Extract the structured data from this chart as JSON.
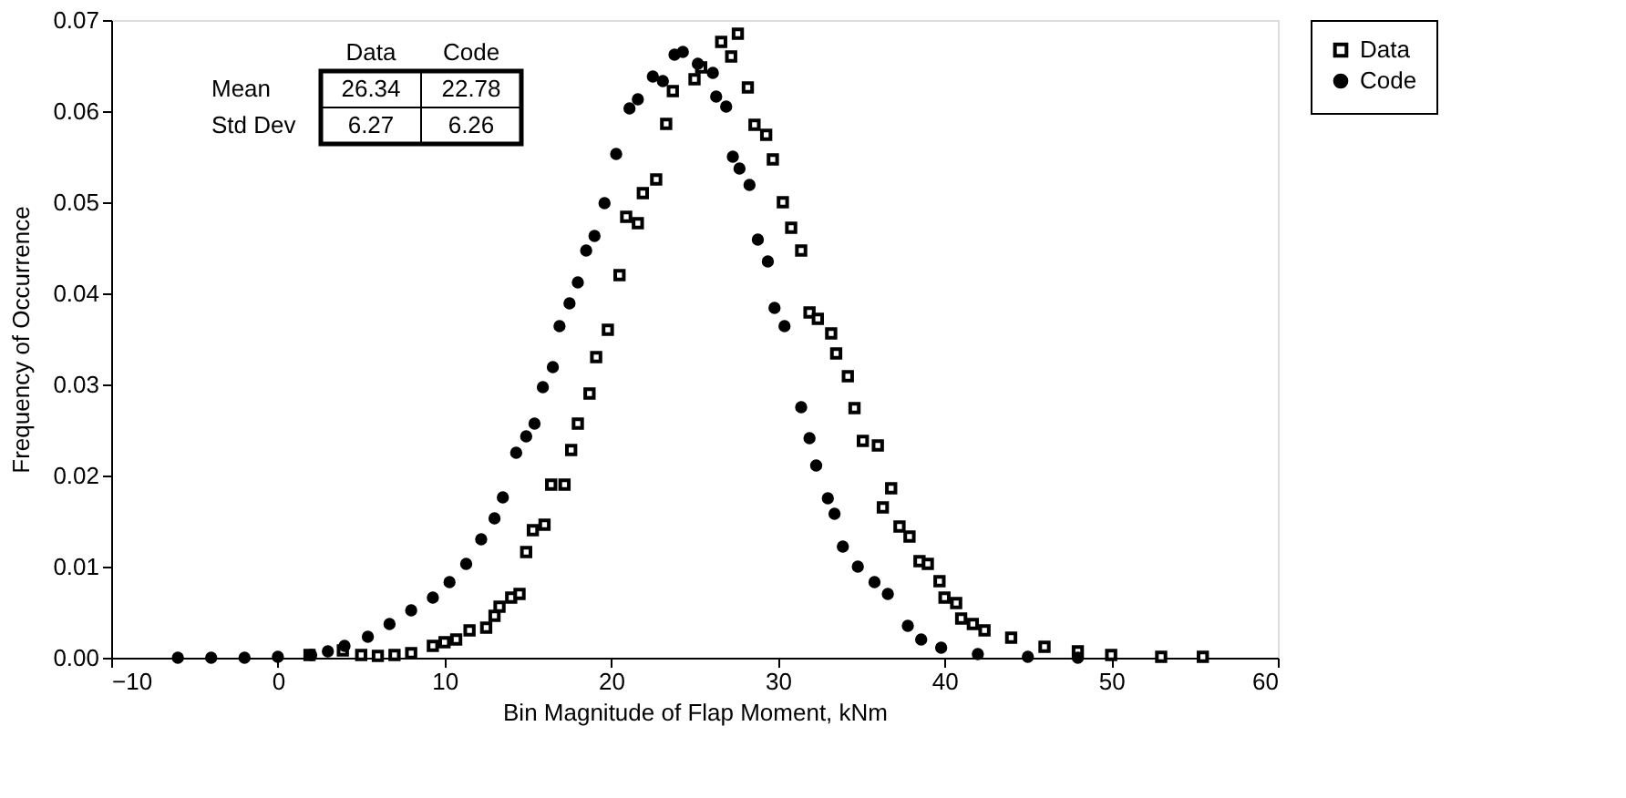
{
  "chart_data": {
    "type": "scatter",
    "xlabel": "Bin Magnitude of Flap Moment, kNm",
    "ylabel": "Frequency of Occurrence",
    "xlim": [
      -10,
      60
    ],
    "xticks": [
      -10,
      0,
      10,
      20,
      30,
      40,
      50,
      60
    ],
    "ylim": [
      0,
      0.07
    ],
    "yticks": [
      {
        "value": 0,
        "label": "0.00"
      },
      {
        "value": 0.01,
        "label": "0.01"
      },
      {
        "value": 0.02,
        "label": "0.02"
      },
      {
        "value": 0.03,
        "label": "0.03"
      },
      {
        "value": 0.04,
        "label": "0.04"
      },
      {
        "value": 0.05,
        "label": "0.05"
      },
      {
        "value": 0.06,
        "label": "0.06"
      },
      {
        "value": 0.07,
        "label": "0.07"
      }
    ],
    "grid": false,
    "legend": "right",
    "annotations": [
      "Data",
      "Code",
      "Mean",
      "26.34",
      "22.78",
      "Std Dev",
      "6.27",
      "6.26"
    ],
    "series": [
      {
        "name": "Data",
        "color": "#000000",
        "marker": "square",
        "x": [
          1.9,
          3.9,
          5,
          6,
          7,
          8,
          9.3,
          10.0,
          10.7,
          11.5,
          12.5,
          13.0,
          13.3,
          14.0,
          14.5,
          14.9,
          15.3,
          16.0,
          16.4,
          17.2,
          17.6,
          18.0,
          18.7,
          19.1,
          19.8,
          20.5,
          20.9,
          21.6,
          21.9,
          22.7,
          23.3,
          23.7,
          25.0,
          25.4,
          26.6,
          27.2,
          27.6,
          28.2,
          28.6,
          29.3,
          29.7,
          30.3,
          30.8,
          31.4,
          31.9,
          32.4,
          33.2,
          33.5,
          34.2,
          34.6,
          35.1,
          36.0,
          36.3,
          36.8,
          37.3,
          37.9,
          38.5,
          39.0,
          39.7,
          40.0,
          40.7,
          41.0,
          41.7,
          42.4,
          44,
          46,
          48,
          50,
          53,
          55.5
        ],
        "values": [
          0.0003,
          0.0008,
          0.0003,
          0.0002,
          0.0003,
          0.0005,
          0.0013,
          0.0017,
          0.002,
          0.003,
          0.0033,
          0.0046,
          0.0056,
          0.0066,
          0.007,
          0.0116,
          0.014,
          0.0146,
          0.019,
          0.019,
          0.0228,
          0.0257,
          0.029,
          0.033,
          0.036,
          0.042,
          0.0484,
          0.0477,
          0.051,
          0.0525,
          0.0586,
          0.0622,
          0.0635,
          0.0648,
          0.0676,
          0.066,
          0.0685,
          0.0626,
          0.0585,
          0.0574,
          0.0547,
          0.05,
          0.0472,
          0.0447,
          0.0379,
          0.0372,
          0.0356,
          0.0334,
          0.0309,
          0.0274,
          0.0238,
          0.0233,
          0.0165,
          0.0186,
          0.0144,
          0.0133,
          0.0106,
          0.0103,
          0.0084,
          0.0066,
          0.006,
          0.0043,
          0.0037,
          0.003,
          0.0022,
          0.0012,
          0.0007,
          0.0003,
          0.0001,
          0.0001
        ]
      },
      {
        "name": "Code",
        "color": "#000000",
        "marker": "circle",
        "x": [
          -6,
          -4,
          -2,
          0,
          2,
          3,
          4.0,
          5.4,
          6.7,
          8.0,
          9.3,
          10.3,
          11.3,
          12.2,
          13.0,
          13.5,
          14.3,
          14.9,
          15.4,
          15.9,
          16.5,
          16.9,
          17.5,
          18.0,
          18.5,
          19.0,
          19.6,
          20.3,
          21.1,
          21.6,
          22.5,
          23.1,
          23.8,
          24.3,
          25.2,
          26.1,
          26.3,
          26.9,
          27.3,
          27.7,
          28.3,
          28.8,
          29.4,
          29.8,
          30.4,
          31.4,
          31.9,
          32.3,
          33.0,
          33.4,
          33.9,
          34.8,
          35.8,
          36.6,
          37.8,
          38.6,
          39.8,
          42,
          45,
          48
        ],
        "values": [
          0,
          0,
          0,
          0.0001,
          0.0003,
          0.0007,
          0.0013,
          0.0023,
          0.0037,
          0.0052,
          0.0066,
          0.0083,
          0.0103,
          0.013,
          0.0153,
          0.0176,
          0.0225,
          0.0243,
          0.0257,
          0.0297,
          0.0319,
          0.0364,
          0.0389,
          0.0412,
          0.0447,
          0.0463,
          0.0499,
          0.0553,
          0.0603,
          0.0613,
          0.0638,
          0.0633,
          0.0662,
          0.0665,
          0.0652,
          0.0642,
          0.0616,
          0.0605,
          0.055,
          0.0537,
          0.0519,
          0.0459,
          0.0435,
          0.0384,
          0.0364,
          0.0275,
          0.0241,
          0.0211,
          0.0175,
          0.0158,
          0.0122,
          0.01,
          0.0083,
          0.007,
          0.0035,
          0.002,
          0.0011,
          0.0004,
          0.0001,
          0
        ]
      }
    ]
  }
}
